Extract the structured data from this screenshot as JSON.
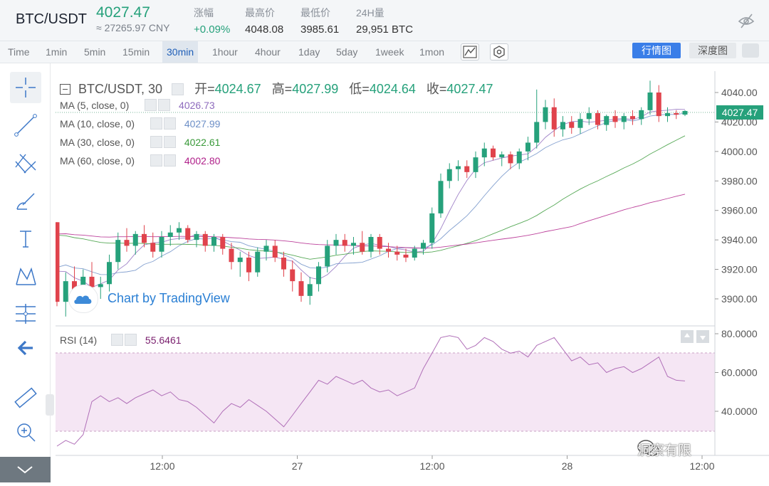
{
  "header": {
    "pair": "BTC/USDT",
    "price": "4027.47",
    "cny": "≈ 27265.97 CNY",
    "stats": [
      {
        "label": "涨幅",
        "value": "+0.09%"
      },
      {
        "label": "最高价",
        "value": "4048.08"
      },
      {
        "label": "最低价",
        "value": "3985.61"
      },
      {
        "label": "24H量",
        "value": "29,951 BTC"
      }
    ]
  },
  "toolbar": {
    "timeframes": [
      "Time",
      "1min",
      "5min",
      "15min",
      "30min",
      "1hour",
      "4hour",
      "1day",
      "5day",
      "1week",
      "1mon"
    ],
    "active": "30min",
    "chart_tab": "行情图",
    "depth_tab": "深度图"
  },
  "legend": {
    "title": "BTC/USDT, 30",
    "open_label": "开=",
    "open": "4024.67",
    "high_label": "高=",
    "high": "4027.99",
    "low_label": "低=",
    "low": "4024.64",
    "close_label": "收=",
    "close": "4027.47",
    "ma": [
      {
        "label": "MA (5, close, 0)",
        "value": "4026.73",
        "color": "#8e6bbd"
      },
      {
        "label": "MA (10, close, 0)",
        "value": "4027.99",
        "color": "#6d8fc7"
      },
      {
        "label": "MA (30, close, 0)",
        "value": "4022.61",
        "color": "#3a9a3a"
      },
      {
        "label": "MA (60, close, 0)",
        "value": "4002.80",
        "color": "#b0208a"
      }
    ]
  },
  "rsi": {
    "label": "RSI (14)",
    "value": "55.6461",
    "color": "#7a1f6e"
  },
  "price_axis": [
    "4040.00",
    "4020.00",
    "4000.00",
    "3980.00",
    "3960.00",
    "3940.00",
    "3920.00",
    "3900.00"
  ],
  "rsi_axis": [
    "80.0000",
    "60.0000",
    "40.0000"
  ],
  "time_axis": [
    "12:00",
    "27",
    "12:00",
    "28",
    "12:00"
  ],
  "last_price_tag": "4027.47",
  "branding": {
    "tv_text": "Chart by TradingView",
    "watermark": "洞察有限"
  },
  "colors": {
    "up": "#26a17b",
    "down": "#e0434c",
    "accent": "#3a7ee8"
  },
  "chart_data": {
    "type": "line",
    "ylim": [
      3885,
      4055
    ],
    "candles": [
      [
        3952,
        3952,
        3895,
        3898
      ],
      [
        3898,
        3918,
        3888,
        3912
      ],
      [
        3912,
        3922,
        3902,
        3906
      ],
      [
        3906,
        3920,
        3900,
        3915
      ],
      [
        3915,
        3925,
        3905,
        3908
      ],
      [
        3908,
        3915,
        3900,
        3910
      ],
      [
        3910,
        3930,
        3905,
        3925
      ],
      [
        3925,
        3945,
        3920,
        3940
      ],
      [
        3940,
        3948,
        3932,
        3936
      ],
      [
        3936,
        3946,
        3930,
        3944
      ],
      [
        3944,
        3950,
        3935,
        3938
      ],
      [
        3938,
        3945,
        3928,
        3932
      ],
      [
        3932,
        3946,
        3928,
        3942
      ],
      [
        3942,
        3950,
        3936,
        3945
      ],
      [
        3945,
        3952,
        3940,
        3948
      ],
      [
        3948,
        3950,
        3938,
        3940
      ],
      [
        3940,
        3946,
        3935,
        3944
      ],
      [
        3944,
        3946,
        3932,
        3936
      ],
      [
        3936,
        3944,
        3932,
        3942
      ],
      [
        3942,
        3944,
        3930,
        3934
      ],
      [
        3934,
        3938,
        3920,
        3925
      ],
      [
        3925,
        3932,
        3915,
        3928
      ],
      [
        3928,
        3932,
        3912,
        3918
      ],
      [
        3918,
        3935,
        3915,
        3932
      ],
      [
        3932,
        3940,
        3926,
        3936
      ],
      [
        3936,
        3940,
        3925,
        3928
      ],
      [
        3928,
        3932,
        3915,
        3920
      ],
      [
        3920,
        3926,
        3905,
        3912
      ],
      [
        3912,
        3918,
        3898,
        3902
      ],
      [
        3902,
        3915,
        3896,
        3910
      ],
      [
        3910,
        3925,
        3905,
        3922
      ],
      [
        3922,
        3940,
        3918,
        3936
      ],
      [
        3936,
        3944,
        3930,
        3940
      ],
      [
        3940,
        3944,
        3932,
        3936
      ],
      [
        3936,
        3942,
        3930,
        3938
      ],
      [
        3938,
        3946,
        3930,
        3932
      ],
      [
        3932,
        3944,
        3928,
        3942
      ],
      [
        3942,
        3944,
        3930,
        3934
      ],
      [
        3934,
        3938,
        3928,
        3932
      ],
      [
        3932,
        3936,
        3926,
        3930
      ],
      [
        3930,
        3934,
        3925,
        3928
      ],
      [
        3928,
        3936,
        3926,
        3934
      ],
      [
        3934,
        3940,
        3930,
        3938
      ],
      [
        3938,
        3962,
        3934,
        3958
      ],
      [
        3958,
        3985,
        3955,
        3980
      ],
      [
        3980,
        3992,
        3975,
        3988
      ],
      [
        3988,
        3994,
        3980,
        3990
      ],
      [
        3990,
        3994,
        3982,
        3986
      ],
      [
        3986,
        4000,
        3982,
        3996
      ],
      [
        3996,
        4006,
        3990,
        4002
      ],
      [
        4002,
        4004,
        3994,
        3996
      ],
      [
        3996,
        4000,
        3990,
        3998
      ],
      [
        3998,
        4000,
        3988,
        3992
      ],
      [
        3992,
        4002,
        3988,
        4000
      ],
      [
        4000,
        4010,
        3994,
        4006
      ],
      [
        4006,
        4042,
        4002,
        4020
      ],
      [
        4020,
        4035,
        4015,
        4030
      ],
      [
        4030,
        4036,
        4010,
        4015
      ],
      [
        4015,
        4024,
        4010,
        4020
      ],
      [
        4020,
        4024,
        4012,
        4016
      ],
      [
        4016,
        4026,
        4012,
        4022
      ],
      [
        4022,
        4030,
        4018,
        4026
      ],
      [
        4026,
        4028,
        4015,
        4018
      ],
      [
        4018,
        4025,
        4014,
        4024
      ],
      [
        4024,
        4028,
        4016,
        4020
      ],
      [
        4020,
        4026,
        4015,
        4024
      ],
      [
        4024,
        4028,
        4018,
        4022
      ],
      [
        4022,
        4030,
        4018,
        4028
      ],
      [
        4028,
        4048,
        4025,
        4040
      ],
      [
        4040,
        4045,
        4020,
        4024
      ],
      [
        4024,
        4030,
        4020,
        4026
      ],
      [
        4026,
        4028,
        4022,
        4025
      ],
      [
        4025,
        4028,
        4024,
        4027.47
      ]
    ],
    "rsi_values": [
      22,
      25,
      23,
      28,
      45,
      48,
      45,
      47,
      44,
      47,
      49,
      51,
      48,
      50,
      46,
      45,
      42,
      38,
      34,
      40,
      44,
      42,
      46,
      43,
      40,
      36,
      32,
      38,
      44,
      50,
      56,
      54,
      58,
      56,
      54,
      56,
      52,
      50,
      51,
      48,
      50,
      52,
      62,
      70,
      78,
      79,
      78,
      72,
      74,
      78,
      76,
      72,
      70,
      71,
      68,
      74,
      76,
      78,
      72,
      66,
      68,
      64,
      65,
      60,
      62,
      63,
      60,
      62,
      65,
      68,
      58,
      56,
      55.6461
    ]
  }
}
